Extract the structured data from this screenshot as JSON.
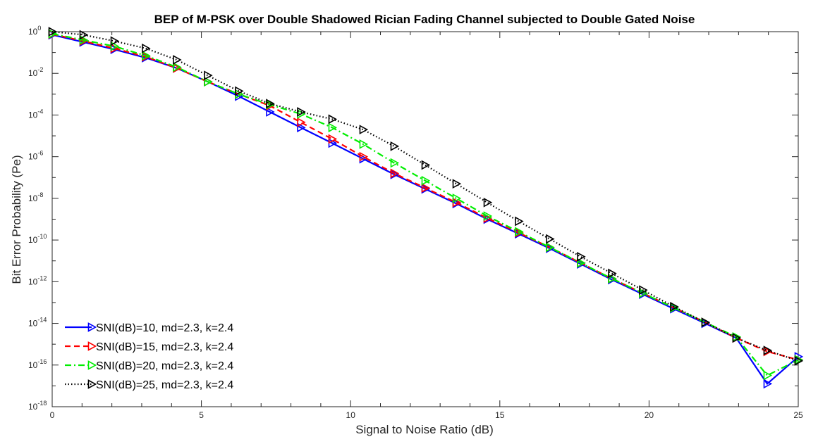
{
  "chart_data": {
    "type": "line",
    "title": "BEP of M-PSK over Double Shadowed Rician Fading Channel subjected to Double Gated Noise",
    "xlabel": "Signal to Noise Ratio (dB)",
    "ylabel": "Bit Error Probability (Pe)",
    "xlim": [
      0,
      25
    ],
    "ylim_log10": [
      -18,
      0
    ],
    "yscale": "log",
    "x_ticks": [
      0,
      5,
      10,
      15,
      20,
      25
    ],
    "y_ticks_log10": [
      0,
      -2,
      -4,
      -6,
      -8,
      -10,
      -12,
      -14,
      -16,
      -18
    ],
    "y_tick_base": "10",
    "grid": false,
    "legend_position": "bottom-left",
    "x": [
      0,
      1.04,
      2.08,
      3.13,
      4.17,
      5.21,
      6.25,
      7.29,
      8.33,
      9.38,
      10.42,
      11.46,
      12.5,
      13.54,
      14.58,
      15.63,
      16.67,
      17.71,
      18.75,
      19.79,
      20.83,
      21.88,
      22.92,
      23.96,
      25
    ],
    "series": [
      {
        "name": "SNI(dB)=10, md=2.3, k=2.4",
        "color": "#0000ff",
        "line_style": "solid",
        "marker": "triangle-right",
        "log10_values": [
          -0.15,
          -0.5,
          -0.85,
          -1.25,
          -1.75,
          -2.4,
          -3.1,
          -3.85,
          -4.6,
          -5.35,
          -6.1,
          -6.85,
          -7.55,
          -8.25,
          -9.0,
          -9.7,
          -10.4,
          -11.15,
          -11.9,
          -12.6,
          -13.3,
          -14.0,
          -14.7,
          -16.9,
          -15.6
        ]
      },
      {
        "name": "SNI(dB)=15, md=2.3, k=2.4",
        "color": "#ff0000",
        "line_style": "dashed",
        "marker": "triangle-right",
        "log10_values": [
          -0.12,
          -0.45,
          -0.8,
          -1.2,
          -1.75,
          -2.4,
          -3.0,
          -3.55,
          -4.35,
          -5.15,
          -6.0,
          -6.8,
          -7.5,
          -8.2,
          -8.95,
          -9.65,
          -10.35,
          -11.1,
          -11.85,
          -12.55,
          -13.25,
          -13.95,
          -14.7,
          -15.35,
          -15.75
        ]
      },
      {
        "name": "SNI(dB)=20, md=2.3, k=2.4",
        "color": "#00ee00",
        "line_style": "dashdot",
        "marker": "triangle-right",
        "log10_values": [
          -0.1,
          -0.4,
          -0.7,
          -1.15,
          -1.7,
          -2.4,
          -3.0,
          -3.5,
          -3.95,
          -4.6,
          -5.4,
          -6.3,
          -7.15,
          -8.0,
          -8.85,
          -9.6,
          -10.35,
          -11.1,
          -11.85,
          -12.55,
          -13.25,
          -13.95,
          -14.65,
          -16.5,
          -15.75
        ]
      },
      {
        "name": "SNI(dB)=25, md=2.3, k=2.4",
        "color": "#000000",
        "line_style": "dotted",
        "marker": "triangle-right",
        "log10_values": [
          0.0,
          -0.15,
          -0.45,
          -0.8,
          -1.35,
          -2.1,
          -2.85,
          -3.45,
          -3.85,
          -4.2,
          -4.7,
          -5.5,
          -6.4,
          -7.3,
          -8.2,
          -9.1,
          -9.95,
          -10.8,
          -11.6,
          -12.4,
          -13.2,
          -13.95,
          -14.7,
          -15.3,
          -15.8
        ]
      }
    ]
  }
}
